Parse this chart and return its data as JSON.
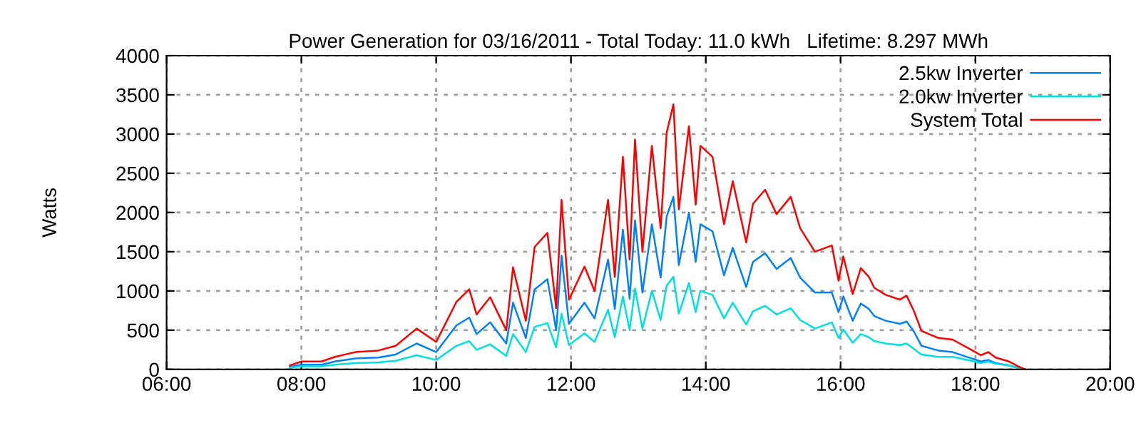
{
  "chart_data": {
    "type": "line",
    "title": "Power Generation for 03/16/2011 - Total Today: 11.0 kWh   Lifetime: 8.297 MWh",
    "ylabel": "Watts",
    "x": [
      7.83,
      8.0,
      8.3,
      8.5,
      8.8,
      9.14,
      9.4,
      9.71,
      10.0,
      10.3,
      10.49,
      10.6,
      10.8,
      11.04,
      11.14,
      11.33,
      11.46,
      11.65,
      11.78,
      11.86,
      11.97,
      12.2,
      12.35,
      12.55,
      12.65,
      12.77,
      12.87,
      12.95,
      13.06,
      13.2,
      13.33,
      13.42,
      13.52,
      13.6,
      13.75,
      13.85,
      13.92,
      14.1,
      14.27,
      14.4,
      14.6,
      14.7,
      14.88,
      15.05,
      15.26,
      15.4,
      15.62,
      15.87,
      15.97,
      16.04,
      16.18,
      16.3,
      16.42,
      16.5,
      16.67,
      16.88,
      16.98,
      17.09,
      17.2,
      17.45,
      17.66,
      17.94,
      18.08,
      18.19,
      18.3,
      18.5,
      18.63,
      18.74
    ],
    "series": [
      {
        "name": "2.5kw Inverter",
        "color": "#0080ff",
        "values": [
          30,
          60,
          60,
          100,
          140,
          150,
          190,
          330,
          220,
          560,
          660,
          450,
          600,
          330,
          850,
          400,
          1020,
          1150,
          500,
          1450,
          580,
          850,
          650,
          1400,
          770,
          1780,
          900,
          1900,
          980,
          1850,
          1170,
          1950,
          2200,
          1330,
          2000,
          1370,
          1850,
          1760,
          1200,
          1550,
          1050,
          1370,
          1480,
          1280,
          1420,
          1170,
          980,
          980,
          730,
          930,
          620,
          840,
          770,
          680,
          620,
          580,
          610,
          480,
          300,
          240,
          220,
          140,
          100,
          120,
          80,
          50,
          20,
          0
        ]
      },
      {
        "name": "2.0kw Inverter",
        "color": "#00e0e0",
        "values": [
          20,
          40,
          40,
          60,
          80,
          90,
          110,
          180,
          120,
          300,
          360,
          250,
          320,
          170,
          450,
          220,
          540,
          590,
          280,
          710,
          310,
          460,
          350,
          760,
          410,
          930,
          500,
          1030,
          520,
          1000,
          630,
          1070,
          1180,
          710,
          1100,
          730,
          1000,
          950,
          650,
          850,
          570,
          740,
          810,
          700,
          780,
          630,
          520,
          600,
          400,
          510,
          340,
          450,
          410,
          360,
          330,
          310,
          330,
          260,
          190,
          160,
          160,
          110,
          80,
          100,
          70,
          50,
          20,
          0
        ]
      },
      {
        "name": "System Total",
        "color": "#ff0000",
        "values": [
          50,
          100,
          100,
          160,
          220,
          240,
          300,
          520,
          350,
          860,
          1020,
          700,
          920,
          500,
          1300,
          620,
          1560,
          1740,
          780,
          2160,
          890,
          1310,
          1000,
          2160,
          1180,
          2710,
          1400,
          2930,
          1500,
          2850,
          1800,
          3020,
          3380,
          2040,
          3100,
          2100,
          2850,
          2710,
          1850,
          2400,
          1620,
          2110,
          2290,
          1980,
          2200,
          1800,
          1500,
          1580,
          1130,
          1440,
          960,
          1290,
          1180,
          1040,
          950,
          890,
          940,
          740,
          490,
          400,
          380,
          250,
          180,
          220,
          150,
          100,
          40,
          0
        ]
      }
    ],
    "xlim": [
      6,
      20
    ],
    "xticks": [
      {
        "value": 6,
        "label": "06:00"
      },
      {
        "value": 8,
        "label": "08:00"
      },
      {
        "value": 10,
        "label": "10:00"
      },
      {
        "value": 12,
        "label": "12:00"
      },
      {
        "value": 14,
        "label": "14:00"
      },
      {
        "value": 16,
        "label": "16:00"
      },
      {
        "value": 18,
        "label": "18:00"
      },
      {
        "value": 20,
        "label": "20:00"
      }
    ],
    "ylim": [
      0,
      4000
    ],
    "yticks": [
      0,
      500,
      1000,
      1500,
      2000,
      2500,
      3000,
      3500,
      4000
    ],
    "grid": true,
    "legend": "top right",
    "line_style": "solid",
    "marker": "none"
  }
}
